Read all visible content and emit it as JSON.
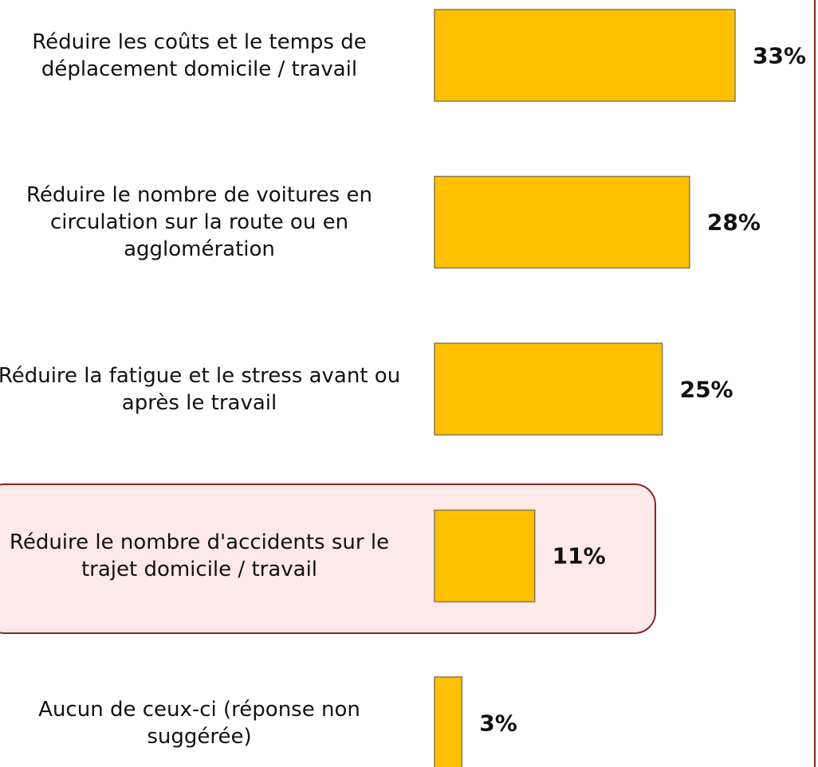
{
  "chart_data": {
    "type": "barh",
    "categories": [
      "Réduire les coûts et le temps de déplacement domicile / travail",
      "Réduire le nombre de voitures en circulation sur la route ou en agglomération",
      "Réduire la fatigue et le stress avant ou après le travail",
      "Réduire le nombre d'accidents sur le trajet domicile / travail",
      "Aucun de ceux-ci (réponse non suggérée)"
    ],
    "values": [
      33,
      28,
      25,
      11,
      3
    ],
    "value_labels": [
      "33%",
      "28%",
      "25%",
      "11%",
      "3%"
    ],
    "color": "#ffc000"
  }
}
